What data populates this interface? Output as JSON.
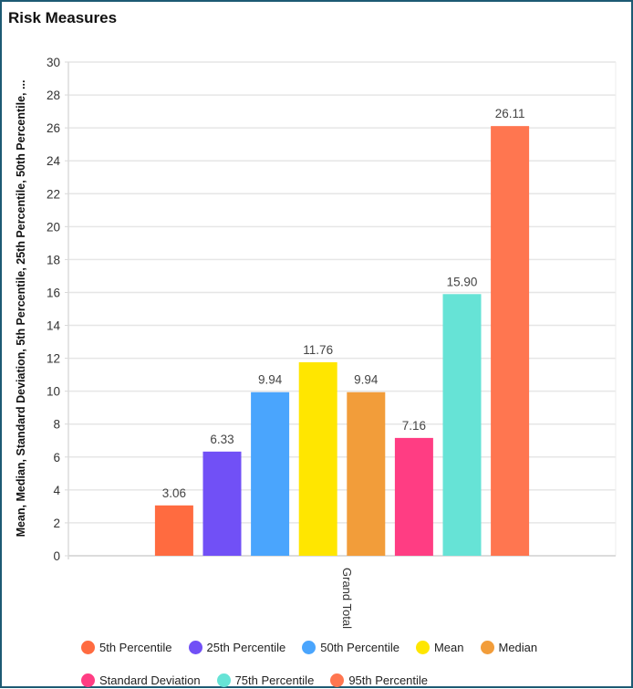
{
  "panel": {
    "title": "Risk Measures"
  },
  "chart_data": {
    "type": "bar",
    "title": "Risk Measures",
    "xlabel": "",
    "ylabel": "Mean, Median, Standard Deviation, 5th Percentile, 25th Percentile, 50th Percentile, ...",
    "categories": [
      "Grand Total"
    ],
    "ylim": [
      0,
      30
    ],
    "yticks": [
      0,
      2,
      4,
      6,
      8,
      10,
      12,
      14,
      16,
      18,
      20,
      22,
      24,
      26,
      28,
      30
    ],
    "grid": true,
    "legend_position": "bottom",
    "series": [
      {
        "name": "5th Percentile",
        "values": [
          3.06
        ],
        "label": "3.06",
        "color": "#ff6b40"
      },
      {
        "name": "25th Percentile",
        "values": [
          6.33
        ],
        "label": "6.33",
        "color": "#7150f6"
      },
      {
        "name": "50th Percentile",
        "values": [
          9.94
        ],
        "label": "9.94",
        "color": "#4aa5fd"
      },
      {
        "name": "Mean",
        "values": [
          11.76
        ],
        "label": "11.76",
        "color": "#ffe600"
      },
      {
        "name": "Median",
        "values": [
          9.94
        ],
        "label": "9.94",
        "color": "#f29d3a"
      },
      {
        "name": "Standard Deviation",
        "values": [
          7.16
        ],
        "label": "7.16",
        "color": "#ff3d83"
      },
      {
        "name": "75th Percentile",
        "values": [
          15.9
        ],
        "label": "15.90",
        "color": "#66e3d6"
      },
      {
        "name": "95th Percentile",
        "values": [
          26.11
        ],
        "label": "26.11",
        "color": "#ff7650"
      }
    ]
  }
}
